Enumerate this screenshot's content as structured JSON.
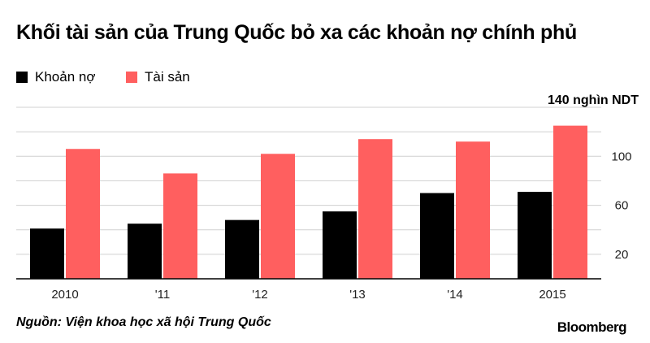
{
  "title": "Khối tài sản của Trung Quốc bỏ xa các khoản nợ chính phủ",
  "source": "Nguồn: Viện khoa học xã hội Trung Quốc",
  "brand": "Bloomberg",
  "colors": {
    "debt": "#000000",
    "assets": "#ff5f5f",
    "grid": "#d0d0d0",
    "axis": "#000000"
  },
  "chart_data": {
    "type": "bar",
    "categories": [
      "2010",
      "'11",
      "'12",
      "'13",
      "'14",
      "2015"
    ],
    "series": [
      {
        "name": "Khoản nợ",
        "values": [
          41,
          45,
          48,
          55,
          70,
          71
        ]
      },
      {
        "name": "Tài sản",
        "values": [
          106,
          86,
          102,
          114,
          112,
          125
        ]
      }
    ],
    "ylim": [
      0,
      140
    ],
    "yticks": [
      20,
      60,
      100
    ],
    "unit_label": "140 nghìn NDT",
    "legend_position": "top-left",
    "grid": true
  }
}
